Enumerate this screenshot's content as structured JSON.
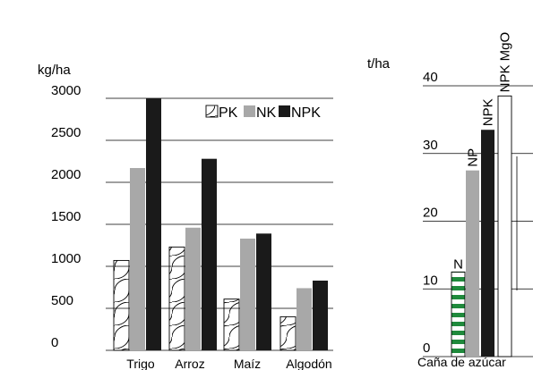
{
  "colors": {
    "PK": "#ffffff",
    "NK": "#a8a8a8",
    "NPK": "#1a1a1a",
    "cane_N_stripes": "#1f8a3c",
    "grid": "#000000"
  },
  "chart_data": [
    {
      "type": "bar",
      "ylabel": "kg/ha",
      "ylim": [
        0,
        3000
      ],
      "yticks": [
        0,
        500,
        1000,
        1500,
        2000,
        2500,
        3000
      ],
      "categories": [
        "Trigo",
        "Arroz",
        "Maíz",
        "Algodón"
      ],
      "legend_position": "top-right",
      "grid": true,
      "series": [
        {
          "name": "PK",
          "pattern": "arcs",
          "values": [
            1070,
            1230,
            610,
            400
          ]
        },
        {
          "name": "NK",
          "values": [
            2170,
            1460,
            1330,
            740
          ]
        },
        {
          "name": "NPK",
          "values": [
            3000,
            2280,
            1390,
            830
          ]
        }
      ]
    },
    {
      "type": "bar",
      "ylabel": "t/ha",
      "ylim": [
        0,
        40
      ],
      "yticks": [
        0,
        10,
        20,
        30,
        40
      ],
      "category_label": "Caña de azúcar",
      "grid": true,
      "bars": [
        {
          "label": "N",
          "value": 12.5,
          "fill": "stripes-green"
        },
        {
          "label": "NP",
          "value": 27.5,
          "fill": "gray"
        },
        {
          "label": "NPK",
          "value": 33.5,
          "fill": "black"
        },
        {
          "label": "NPK MgO",
          "value": 38.5,
          "fill": "white"
        }
      ]
    }
  ]
}
